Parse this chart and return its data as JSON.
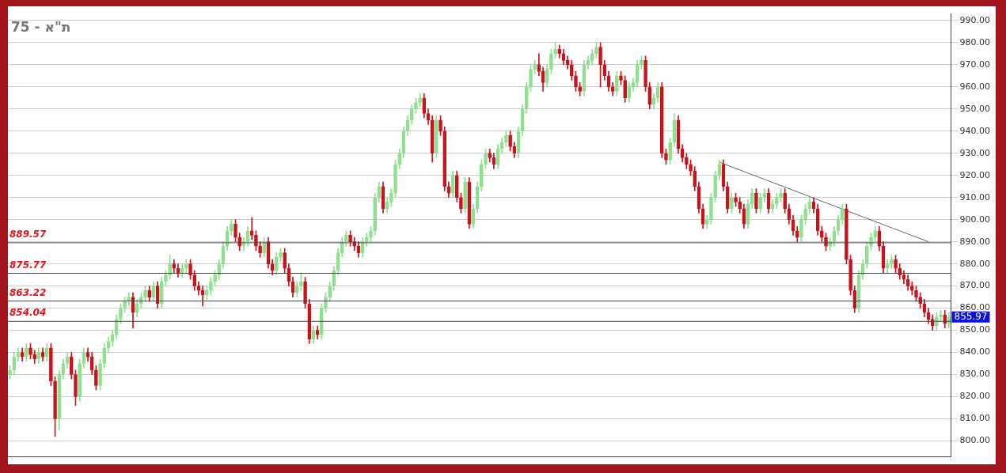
{
  "chart_data": {
    "type": "candlestick",
    "title": "ת\"א - 75",
    "categories": [
      null,
      null,
      null,
      null,
      null,
      null,
      null,
      null,
      null,
      null,
      null,
      null,
      null,
      null,
      null,
      null,
      null,
      null,
      null,
      null,
      null,
      null,
      null,
      null,
      null,
      null,
      null,
      null,
      null,
      null,
      null,
      null,
      null,
      null,
      null,
      null,
      null,
      null,
      null,
      null,
      null,
      null,
      null,
      null,
      null,
      null,
      null,
      null,
      null,
      null,
      null,
      null,
      null,
      null,
      null,
      null,
      null,
      null,
      null,
      null,
      null,
      null,
      null,
      null,
      null,
      null,
      null,
      null,
      null,
      null,
      null,
      null,
      null,
      null,
      null,
      null,
      null,
      null,
      null,
      null,
      null,
      null,
      null,
      null,
      null,
      null,
      null,
      null,
      null,
      null,
      null,
      null,
      null,
      null,
      null,
      null,
      null,
      null,
      null,
      null,
      null,
      null,
      null,
      null,
      null,
      null,
      null,
      null,
      null,
      null,
      null,
      null,
      null,
      null,
      null,
      null,
      null,
      null,
      null,
      null,
      null,
      null,
      null,
      null,
      null,
      null,
      null,
      null,
      null,
      null,
      null,
      null,
      null,
      null,
      null,
      null,
      null,
      null,
      null,
      null,
      null,
      null,
      null,
      null,
      null,
      null,
      null,
      null,
      null,
      null,
      null,
      null,
      null,
      null,
      null,
      null,
      null,
      null,
      null,
      null,
      null,
      null,
      null,
      null,
      null,
      null,
      null,
      null,
      null,
      null,
      null,
      null,
      null,
      null,
      null,
      null,
      null,
      null,
      null,
      null,
      null,
      null,
      null,
      null,
      null,
      null,
      null,
      null,
      null,
      null,
      null,
      null,
      null,
      null,
      null,
      null,
      null,
      null,
      null,
      null,
      null,
      null,
      null,
      null,
      null,
      null,
      null,
      null,
      null,
      null,
      null,
      null,
      null,
      null,
      null,
      null,
      null,
      null,
      null,
      null,
      null,
      null,
      null,
      null,
      null,
      null,
      null,
      null,
      null,
      null
    ],
    "ohlc": [
      [
        830,
        834,
        828,
        832
      ],
      [
        832,
        840,
        830,
        838
      ],
      [
        838,
        842,
        836,
        840
      ],
      [
        840,
        842,
        836,
        838
      ],
      [
        838,
        844,
        836,
        842
      ],
      [
        842,
        844,
        837,
        839
      ],
      [
        839,
        841,
        835,
        837
      ],
      [
        837,
        842,
        835,
        840
      ],
      [
        840,
        842,
        836,
        838
      ],
      [
        838,
        844,
        836,
        842
      ],
      [
        842,
        844,
        825,
        827
      ],
      [
        827,
        829,
        802,
        810
      ],
      [
        810,
        832,
        805,
        830
      ],
      [
        830,
        837,
        828,
        835
      ],
      [
        835,
        840,
        833,
        838
      ],
      [
        838,
        840,
        828,
        830
      ],
      [
        830,
        832,
        816,
        820
      ],
      [
        820,
        837,
        818,
        835
      ],
      [
        835,
        842,
        833,
        840
      ],
      [
        840,
        842,
        836,
        838
      ],
      [
        838,
        840,
        830,
        832
      ],
      [
        832,
        834,
        823,
        825
      ],
      [
        825,
        837,
        823,
        835
      ],
      [
        835,
        844,
        833,
        842
      ],
      [
        842,
        847,
        840,
        845
      ],
      [
        845,
        850,
        843,
        848
      ],
      [
        848,
        857,
        846,
        855
      ],
      [
        855,
        862,
        853,
        860
      ],
      [
        860,
        865,
        858,
        863
      ],
      [
        863,
        867,
        861,
        865
      ],
      [
        865,
        867,
        851,
        858
      ],
      [
        858,
        864,
        856,
        862
      ],
      [
        862,
        867,
        860,
        865
      ],
      [
        865,
        870,
        863,
        868
      ],
      [
        868,
        870,
        863,
        865
      ],
      [
        865,
        872,
        863,
        870
      ],
      [
        870,
        872,
        860,
        862
      ],
      [
        862,
        874,
        860,
        872
      ],
      [
        872,
        877,
        870,
        875
      ],
      [
        875,
        884,
        873,
        880
      ],
      [
        880,
        882,
        876,
        878
      ],
      [
        878,
        880,
        874,
        876
      ],
      [
        876,
        880,
        874,
        878
      ],
      [
        878,
        882,
        876,
        880
      ],
      [
        880,
        882,
        873,
        875
      ],
      [
        875,
        877,
        868,
        870
      ],
      [
        870,
        872,
        866,
        868
      ],
      [
        868,
        870,
        861,
        866
      ],
      [
        866,
        870,
        864,
        868
      ],
      [
        868,
        874,
        866,
        872
      ],
      [
        872,
        877,
        870,
        875
      ],
      [
        875,
        882,
        873,
        880
      ],
      [
        880,
        890,
        878,
        888
      ],
      [
        888,
        897,
        886,
        895
      ],
      [
        895,
        900,
        893,
        898
      ],
      [
        898,
        900,
        890,
        892
      ],
      [
        892,
        894,
        886,
        888
      ],
      [
        888,
        892,
        886,
        890
      ],
      [
        890,
        897,
        888,
        895
      ],
      [
        895,
        901,
        891,
        893
      ],
      [
        893,
        895,
        886,
        888
      ],
      [
        888,
        890,
        883,
        885
      ],
      [
        885,
        892,
        883,
        890
      ],
      [
        890,
        892,
        878,
        880
      ],
      [
        880,
        882,
        875,
        877
      ],
      [
        877,
        885,
        875,
        883
      ],
      [
        883,
        887,
        881,
        885
      ],
      [
        885,
        887,
        876,
        878
      ],
      [
        878,
        880,
        870,
        872
      ],
      [
        872,
        874,
        865,
        867
      ],
      [
        867,
        872,
        865,
        870
      ],
      [
        870,
        876,
        868,
        872
      ],
      [
        872,
        874,
        860,
        862
      ],
      [
        862,
        864,
        844,
        846
      ],
      [
        846,
        852,
        844,
        850
      ],
      [
        850,
        852,
        846,
        848
      ],
      [
        848,
        862,
        846,
        860
      ],
      [
        860,
        867,
        858,
        865
      ],
      [
        865,
        872,
        863,
        870
      ],
      [
        870,
        879,
        868,
        877
      ],
      [
        877,
        887,
        875,
        885
      ],
      [
        885,
        892,
        883,
        890
      ],
      [
        890,
        895,
        888,
        893
      ],
      [
        893,
        895,
        888,
        890
      ],
      [
        890,
        892,
        886,
        888
      ],
      [
        888,
        890,
        883,
        885
      ],
      [
        885,
        892,
        883,
        890
      ],
      [
        890,
        894,
        888,
        892
      ],
      [
        892,
        897,
        890,
        895
      ],
      [
        895,
        912,
        893,
        910
      ],
      [
        910,
        917,
        908,
        915
      ],
      [
        915,
        917,
        903,
        905
      ],
      [
        905,
        910,
        903,
        908
      ],
      [
        908,
        914,
        906,
        912
      ],
      [
        912,
        927,
        910,
        925
      ],
      [
        925,
        932,
        923,
        930
      ],
      [
        930,
        942,
        928,
        940
      ],
      [
        940,
        947,
        938,
        945
      ],
      [
        945,
        952,
        943,
        950
      ],
      [
        950,
        955,
        948,
        953
      ],
      [
        953,
        957,
        951,
        955
      ],
      [
        955,
        957,
        946,
        948
      ],
      [
        948,
        950,
        943,
        945
      ],
      [
        945,
        947,
        926,
        930
      ],
      [
        930,
        947,
        928,
        945
      ],
      [
        945,
        947,
        938,
        940
      ],
      [
        940,
        942,
        913,
        915
      ],
      [
        915,
        917,
        910,
        912
      ],
      [
        912,
        922,
        910,
        920
      ],
      [
        920,
        922,
        908,
        910
      ],
      [
        910,
        912,
        903,
        905
      ],
      [
        905,
        919,
        903,
        917
      ],
      [
        917,
        919,
        896,
        898
      ],
      [
        898,
        907,
        896,
        905
      ],
      [
        905,
        917,
        903,
        915
      ],
      [
        915,
        927,
        913,
        925
      ],
      [
        925,
        932,
        923,
        930
      ],
      [
        930,
        932,
        926,
        928
      ],
      [
        928,
        930,
        923,
        925
      ],
      [
        925,
        934,
        923,
        932
      ],
      [
        932,
        937,
        930,
        935
      ],
      [
        935,
        940,
        933,
        938
      ],
      [
        938,
        940,
        931,
        933
      ],
      [
        933,
        935,
        928,
        930
      ],
      [
        930,
        942,
        928,
        940
      ],
      [
        940,
        952,
        938,
        950
      ],
      [
        950,
        962,
        948,
        960
      ],
      [
        960,
        970,
        958,
        968
      ],
      [
        968,
        972,
        966,
        970
      ],
      [
        970,
        975,
        965,
        967
      ],
      [
        967,
        969,
        958,
        962
      ],
      [
        962,
        970,
        960,
        968
      ],
      [
        968,
        977,
        966,
        975
      ],
      [
        975,
        980,
        973,
        977
      ],
      [
        977,
        979,
        973,
        975
      ],
      [
        975,
        977,
        970,
        972
      ],
      [
        972,
        974,
        968,
        970
      ],
      [
        970,
        972,
        963,
        965
      ],
      [
        965,
        967,
        958,
        960
      ],
      [
        960,
        962,
        956,
        958
      ],
      [
        958,
        972,
        956,
        970
      ],
      [
        970,
        974,
        968,
        972
      ],
      [
        972,
        977,
        970,
        975
      ],
      [
        975,
        980,
        973,
        978
      ],
      [
        978,
        980,
        960,
        970
      ],
      [
        970,
        972,
        963,
        965
      ],
      [
        965,
        967,
        958,
        960
      ],
      [
        960,
        962,
        956,
        958
      ],
      [
        958,
        967,
        956,
        965
      ],
      [
        965,
        967,
        961,
        963
      ],
      [
        963,
        965,
        953,
        955
      ],
      [
        955,
        962,
        953,
        960
      ],
      [
        960,
        964,
        958,
        962
      ],
      [
        962,
        972,
        960,
        970
      ],
      [
        970,
        974,
        968,
        972
      ],
      [
        972,
        974,
        958,
        960
      ],
      [
        960,
        962,
        950,
        952
      ],
      [
        952,
        957,
        950,
        955
      ],
      [
        955,
        962,
        953,
        960
      ],
      [
        960,
        962,
        928,
        930
      ],
      [
        930,
        932,
        925,
        927
      ],
      [
        927,
        937,
        925,
        935
      ],
      [
        935,
        948,
        933,
        945
      ],
      [
        945,
        947,
        930,
        932
      ],
      [
        932,
        934,
        926,
        928
      ],
      [
        928,
        930,
        923,
        925
      ],
      [
        925,
        927,
        920,
        922
      ],
      [
        922,
        924,
        913,
        915
      ],
      [
        915,
        917,
        903,
        905
      ],
      [
        905,
        907,
        896,
        898
      ],
      [
        898,
        902,
        896,
        900
      ],
      [
        900,
        912,
        898,
        910
      ],
      [
        910,
        922,
        908,
        920
      ],
      [
        920,
        927,
        918,
        925
      ],
      [
        925,
        927,
        913,
        915
      ],
      [
        915,
        917,
        903,
        905
      ],
      [
        905,
        912,
        903,
        910
      ],
      [
        910,
        912,
        906,
        908
      ],
      [
        908,
        910,
        903,
        905
      ],
      [
        905,
        907,
        896,
        898
      ],
      [
        898,
        909,
        896,
        907
      ],
      [
        907,
        914,
        905,
        912
      ],
      [
        912,
        914,
        903,
        905
      ],
      [
        905,
        912,
        903,
        910
      ],
      [
        910,
        914,
        908,
        912
      ],
      [
        912,
        914,
        903,
        905
      ],
      [
        905,
        909,
        903,
        907
      ],
      [
        907,
        912,
        905,
        910
      ],
      [
        910,
        914,
        908,
        912
      ],
      [
        912,
        914,
        903,
        905
      ],
      [
        905,
        907,
        898,
        900
      ],
      [
        900,
        902,
        893,
        895
      ],
      [
        895,
        897,
        890,
        892
      ],
      [
        892,
        902,
        890,
        900
      ],
      [
        900,
        907,
        898,
        905
      ],
      [
        905,
        910,
        903,
        908
      ],
      [
        908,
        910,
        903,
        905
      ],
      [
        905,
        907,
        893,
        895
      ],
      [
        895,
        897,
        890,
        892
      ],
      [
        892,
        894,
        886,
        888
      ],
      [
        888,
        892,
        886,
        890
      ],
      [
        890,
        897,
        888,
        895
      ],
      [
        895,
        902,
        893,
        900
      ],
      [
        900,
        907,
        898,
        905
      ],
      [
        905,
        907,
        880,
        882
      ],
      [
        882,
        884,
        866,
        868
      ],
      [
        868,
        870,
        858,
        860
      ],
      [
        860,
        877,
        858,
        875
      ],
      [
        875,
        882,
        873,
        880
      ],
      [
        880,
        890,
        878,
        888
      ],
      [
        888,
        894,
        886,
        892
      ],
      [
        892,
        897,
        890,
        895
      ],
      [
        895,
        897,
        886,
        888
      ],
      [
        888,
        890,
        876,
        878
      ],
      [
        878,
        882,
        876,
        880
      ],
      [
        880,
        884,
        878,
        882
      ],
      [
        882,
        884,
        876,
        878
      ],
      [
        878,
        880,
        873,
        875
      ],
      [
        875,
        877,
        871,
        873
      ],
      [
        873,
        875,
        868,
        870
      ],
      [
        870,
        872,
        866,
        868
      ],
      [
        868,
        870,
        863,
        865
      ],
      [
        865,
        867,
        860,
        862
      ],
      [
        862,
        864,
        856,
        858
      ],
      [
        858,
        860,
        853,
        855
      ],
      [
        855,
        857,
        850,
        852
      ],
      [
        852,
        858,
        850,
        856
      ],
      [
        856,
        859,
        854,
        857
      ],
      [
        857,
        859,
        851,
        853
      ],
      [
        853,
        858,
        851,
        855.97
      ]
    ],
    "colors": [
      "#8fe08f",
      "#8fe08f",
      "#8fe08f",
      "#c8141c",
      "#8fe08f",
      "#c8141c",
      "#c8141c",
      "#8fe08f",
      "#c8141c",
      "#8fe08f",
      "#c8141c",
      "#c8141c",
      "#8fe08f",
      "#8fe08f",
      "#8fe08f",
      "#c8141c",
      "#c8141c",
      "#8fe08f",
      "#8fe08f",
      "#c8141c",
      "#c8141c",
      "#c8141c",
      "#8fe08f",
      "#8fe08f",
      "#8fe08f",
      "#8fe08f",
      "#8fe08f",
      "#8fe08f",
      "#8fe08f",
      "#8fe08f",
      "#c8141c",
      "#8fe08f",
      "#8fe08f",
      "#8fe08f",
      "#c8141c",
      "#8fe08f",
      "#c8141c",
      "#8fe08f",
      "#8fe08f",
      "#8fe08f",
      "#c8141c",
      "#c8141c",
      "#8fe08f",
      "#8fe08f",
      "#c8141c",
      "#c8141c",
      "#c8141c",
      "#c8141c",
      "#8fe08f",
      "#8fe08f",
      "#8fe08f",
      "#8fe08f",
      "#8fe08f",
      "#8fe08f",
      "#8fe08f",
      "#c8141c",
      "#c8141c",
      "#8fe08f",
      "#8fe08f",
      "#c8141c",
      "#c8141c",
      "#c8141c",
      "#8fe08f",
      "#c8141c",
      "#c8141c",
      "#8fe08f",
      "#8fe08f",
      "#c8141c",
      "#c8141c",
      "#c8141c",
      "#8fe08f",
      "#8fe08f",
      "#c8141c",
      "#c8141c",
      "#8fe08f",
      "#c8141c",
      "#8fe08f",
      "#8fe08f",
      "#8fe08f",
      "#8fe08f",
      "#8fe08f",
      "#8fe08f",
      "#8fe08f",
      "#c8141c",
      "#c8141c",
      "#c8141c",
      "#8fe08f",
      "#8fe08f",
      "#8fe08f",
      "#8fe08f",
      "#8fe08f",
      "#c8141c",
      "#8fe08f",
      "#8fe08f",
      "#8fe08f",
      "#8fe08f",
      "#8fe08f",
      "#8fe08f",
      "#8fe08f",
      "#8fe08f",
      "#8fe08f",
      "#c8141c",
      "#c8141c",
      "#c8141c",
      "#8fe08f",
      "#c8141c",
      "#c8141c",
      "#c8141c",
      "#8fe08f",
      "#c8141c",
      "#c8141c",
      "#8fe08f",
      "#c8141c",
      "#8fe08f",
      "#8fe08f",
      "#8fe08f",
      "#8fe08f",
      "#c8141c",
      "#c8141c",
      "#8fe08f",
      "#8fe08f",
      "#8fe08f",
      "#c8141c",
      "#c8141c",
      "#8fe08f",
      "#8fe08f",
      "#8fe08f",
      "#8fe08f",
      "#8fe08f",
      "#c8141c",
      "#c8141c",
      "#8fe08f",
      "#8fe08f",
      "#8fe08f",
      "#c8141c",
      "#c8141c",
      "#c8141c",
      "#c8141c",
      "#c8141c",
      "#c8141c",
      "#8fe08f",
      "#8fe08f",
      "#8fe08f",
      "#8fe08f",
      "#c8141c",
      "#c8141c",
      "#c8141c",
      "#c8141c",
      "#8fe08f",
      "#c8141c",
      "#c8141c",
      "#8fe08f",
      "#8fe08f",
      "#8fe08f",
      "#8fe08f",
      "#c8141c",
      "#c8141c",
      "#8fe08f",
      "#8fe08f",
      "#c8141c",
      "#c8141c",
      "#8fe08f",
      "#8fe08f",
      "#c8141c",
      "#c8141c",
      "#c8141c",
      "#c8141c",
      "#c8141c",
      "#c8141c",
      "#c8141c",
      "#8fe08f",
      "#8fe08f",
      "#8fe08f",
      "#8fe08f",
      "#c8141c",
      "#c8141c",
      "#8fe08f",
      "#c8141c",
      "#c8141c",
      "#c8141c",
      "#8fe08f",
      "#8fe08f",
      "#c8141c",
      "#8fe08f",
      "#8fe08f",
      "#c8141c",
      "#8fe08f",
      "#8fe08f",
      "#8fe08f",
      "#c8141c",
      "#c8141c",
      "#c8141c",
      "#c8141c",
      "#8fe08f",
      "#8fe08f",
      "#8fe08f",
      "#c8141c",
      "#c8141c",
      "#c8141c",
      "#c8141c",
      "#8fe08f",
      "#8fe08f",
      "#8fe08f",
      "#8fe08f",
      "#c8141c",
      "#c8141c",
      "#c8141c",
      "#8fe08f",
      "#8fe08f",
      "#8fe08f",
      "#8fe08f",
      "#8fe08f",
      "#c8141c",
      "#c8141c",
      "#8fe08f",
      "#8fe08f",
      "#c8141c",
      "#c8141c",
      "#c8141c",
      "#c8141c",
      "#c8141c",
      "#c8141c",
      "#c8141c",
      "#c8141c",
      "#c8141c",
      "#c8141c",
      "#8fe08f",
      "#8fe08f",
      "#c8141c",
      "#8fe08f"
    ],
    "series": [
      {
        "type": "line",
        "color": "#666666",
        "values": [
          null,
          null,
          null,
          null,
          null,
          null,
          null,
          null,
          null,
          null,
          null,
          null,
          null,
          null,
          null,
          null,
          null,
          null,
          null,
          null,
          null,
          null,
          null,
          null,
          null,
          null,
          null,
          null,
          null,
          null,
          null,
          null,
          null,
          null,
          null,
          null,
          null,
          null,
          null,
          null,
          null,
          null,
          null,
          null,
          null,
          null,
          null,
          null,
          null,
          null,
          null,
          null,
          null,
          null,
          null,
          null,
          null,
          null,
          null,
          null,
          null,
          null,
          null,
          null,
          null,
          null,
          null,
          null,
          null,
          null,
          null,
          null,
          null,
          null,
          null,
          null,
          null,
          null,
          null,
          null,
          null,
          null,
          null,
          null,
          null,
          null,
          null,
          null,
          null,
          null,
          null,
          null,
          null,
          null,
          null,
          null,
          null,
          null,
          null,
          null,
          null,
          null,
          null,
          null,
          null,
          null,
          null,
          null,
          null,
          null,
          null,
          null,
          null,
          null,
          null,
          null,
          null,
          null,
          null,
          null,
          null,
          null,
          null,
          null,
          null,
          null,
          null,
          null,
          null,
          null,
          null,
          null,
          null,
          null,
          null,
          null,
          null,
          null,
          null,
          null,
          null,
          null,
          null,
          null,
          null,
          null,
          null,
          null,
          null,
          null,
          null,
          null,
          null,
          null,
          null,
          null,
          null,
          null,
          null,
          null,
          null,
          null,
          null,
          null,
          null,
          null,
          null,
          null,
          null,
          null,
          null,
          null,
          null,
          926,
          null,
          null,
          null,
          null,
          null,
          null,
          null,
          null,
          null,
          null,
          null,
          null,
          null,
          null,
          null,
          null,
          null,
          null,
          null,
          null,
          null,
          null,
          null,
          null,
          null,
          null,
          null,
          null,
          null,
          null,
          null,
          null,
          null,
          null,
          null,
          null,
          null,
          null,
          null,
          null,
          null,
          null,
          null,
          null,
          null,
          null,
          null,
          null,
          null,
          null,
          890,
          null,
          null,
          null,
          null,
          null
        ]
      }
    ],
    "ylim": [
      793,
      993
    ],
    "yticks": [
      {
        "value": 800,
        "label": "800.00"
      },
      {
        "value": 810,
        "label": "810.00"
      },
      {
        "value": 820,
        "label": "820.00"
      },
      {
        "value": 830,
        "label": "830.00"
      },
      {
        "value": 840,
        "label": "840.00"
      },
      {
        "value": 850,
        "label": "850.00"
      },
      {
        "value": 860,
        "label": "860.00"
      },
      {
        "value": 870,
        "label": "870.00"
      },
      {
        "value": 880,
        "label": "880.00"
      },
      {
        "value": 890,
        "label": "890.00"
      },
      {
        "value": 900,
        "label": "900.00"
      },
      {
        "value": 910,
        "label": "910.00"
      },
      {
        "value": 920,
        "label": "920.00"
      },
      {
        "value": 930,
        "label": "930.00"
      },
      {
        "value": 940,
        "label": "940.00"
      },
      {
        "value": 950,
        "label": "950.00"
      },
      {
        "value": 960,
        "label": "960.00"
      },
      {
        "value": 970,
        "label": "970.00"
      },
      {
        "value": 980,
        "label": "980.00"
      },
      {
        "value": 990,
        "label": "990.00"
      }
    ],
    "ref_lines": [
      {
        "axis": "y",
        "value": 889.57,
        "label": "889.57",
        "color": "#444444"
      },
      {
        "axis": "y",
        "value": 875.77,
        "label": "875.77",
        "color": "#444444"
      },
      {
        "axis": "y",
        "value": 863.22,
        "label": "863.22",
        "color": "#444444"
      },
      {
        "axis": "y",
        "value": 854.04,
        "label": "854.04",
        "color": "#444444"
      }
    ],
    "annotations": [
      "855.97"
    ],
    "grid": "y",
    "legend": false,
    "tick_labels": "y",
    "marker": "none",
    "line_style": "solid"
  }
}
